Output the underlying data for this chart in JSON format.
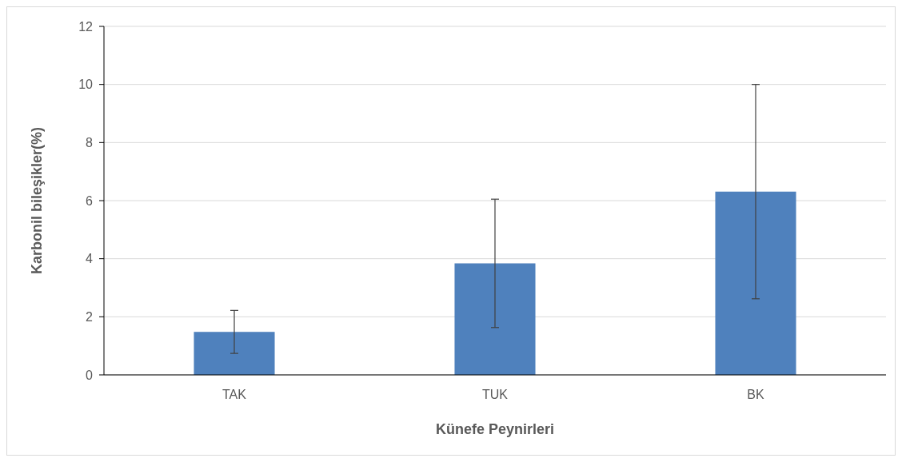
{
  "chart_data": {
    "type": "bar",
    "xlabel": "Künefe Peynirleri",
    "ylabel": "Karbonil bileşikler(%)",
    "categories": [
      "TAK",
      "TUK",
      "BK"
    ],
    "values": [
      1.48,
      3.84,
      6.31
    ],
    "errors": [
      0.74,
      2.21,
      3.69
    ],
    "color": "#4f81bd",
    "ylim": [
      0,
      12
    ],
    "yticks": [
      0,
      2,
      4,
      6,
      8,
      10,
      12
    ],
    "grid": "y"
  }
}
